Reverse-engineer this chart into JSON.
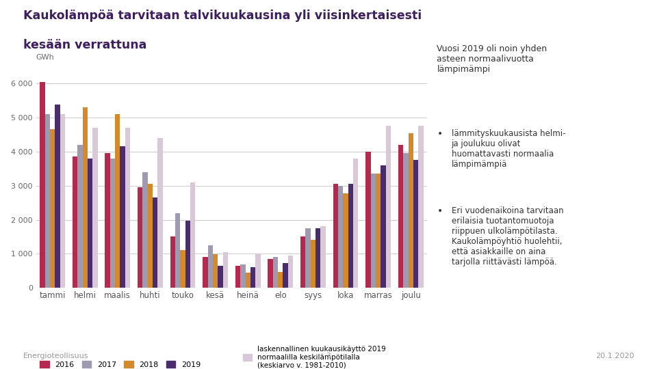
{
  "title_line1": "Kaukolämpöä tarvitaan talvikuukausina yli viisinkertaisesti",
  "title_line2": "kesään verrattuna",
  "ylabel": "GWh",
  "categories": [
    "tammi",
    "helmi",
    "maalis",
    "huhti",
    "touko",
    "kesä",
    "heinä",
    "elo",
    "syys",
    "loka",
    "marras",
    "joulu"
  ],
  "series": {
    "2016": [
      6050,
      3850,
      3950,
      2950,
      1500,
      900,
      650,
      850,
      1500,
      3050,
      4000,
      4200
    ],
    "2017": [
      5100,
      4200,
      3800,
      3400,
      2200,
      1250,
      680,
      900,
      1750,
      3000,
      3350,
      3950
    ],
    "2018": [
      4650,
      5300,
      5100,
      3050,
      1100,
      980,
      450,
      470,
      1400,
      2780,
      3350,
      4530
    ],
    "2019": [
      5380,
      3800,
      4150,
      2650,
      1980,
      640,
      600,
      730,
      1750,
      3050,
      3600,
      3750
    ],
    "normal": [
      5100,
      4700,
      4700,
      4400,
      3100,
      1050,
      1000,
      950,
      1800,
      3800,
      4750,
      4750
    ]
  },
  "colors": {
    "2016": "#b5294e",
    "2017": "#a09ab0",
    "2018": "#d4892a",
    "2019": "#4b2d6e",
    "normal": "#d9c8d8"
  },
  "legend_labels": {
    "2016": "2016",
    "2017": "2017",
    "2018": "2018",
    "2019": "2019",
    "normal": "laskennallinen kuukausikäyttö 2019\nnormaalilla keskilämpötilalla\n(keskiarvo v. 1981-2010)"
  },
  "ylim": [
    0,
    6500
  ],
  "yticks": [
    0,
    1000,
    2000,
    3000,
    4000,
    5000,
    6000
  ],
  "ytick_labels": [
    "0",
    "1 000",
    "2 000",
    "3 000",
    "4 000",
    "5 000",
    "6 000"
  ],
  "background_color": "#ffffff",
  "grid_color": "#cccccc",
  "title_color": "#3d1f5e",
  "footer_left": "Energioteollisuus",
  "footer_center": "3",
  "footer_right": "20.1.2020",
  "right_text_title": "Vuosi 2019 oli noin yhden\nasteen normaalivuotta\nlämpimämpi",
  "right_bullets": [
    "lämmityskuukausista helmi-\nja joulukuu olivat\nhuomattavasti normaalia\nlämpimämpiä",
    "Eri vuodenaikoina tarvitaan\nerilaisia tuotantomuotoja\nriippuen ulkolämpötilasta.\nKaukolämpöyhtiö huolehtii,\nettä asiakkaille on aina\ntarjolla riittävästi lämpöä."
  ]
}
